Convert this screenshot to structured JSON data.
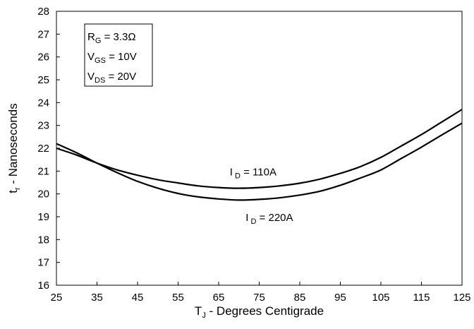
{
  "chart_data": {
    "type": "line",
    "xlabel": {
      "main": "T",
      "sub": "J",
      "rest": " - Degrees Centigrade"
    },
    "ylabel": {
      "main": "t",
      "sub": "r",
      "rest": " - Nanoseconds"
    },
    "xlim": [
      25,
      125
    ],
    "ylim": [
      16,
      28
    ],
    "xticks": [
      "25",
      "35",
      "45",
      "55",
      "65",
      "75",
      "85",
      "95",
      "105",
      "115",
      "125"
    ],
    "yticks": [
      "16",
      "17",
      "18",
      "19",
      "20",
      "21",
      "22",
      "23",
      "24",
      "25",
      "26",
      "27",
      "28"
    ],
    "grid": false,
    "conditions": [
      {
        "main": "R",
        "sub": "G",
        "rest": " = 3.3Ω"
      },
      {
        "main": "V",
        "sub": "GS",
        "rest": " = 10V"
      },
      {
        "main": "V",
        "sub": "DS",
        "rest": " = 20V"
      }
    ],
    "series": [
      {
        "name": {
          "main": "I",
          "sub": " D",
          "rest": " = 110A"
        },
        "x": [
          25,
          30,
          35,
          40,
          45,
          50,
          55,
          60,
          65,
          70,
          75,
          80,
          85,
          90,
          95,
          100,
          105,
          110,
          115,
          120,
          125
        ],
        "y": [
          22.0,
          21.7,
          21.35,
          21.05,
          20.82,
          20.62,
          20.48,
          20.35,
          20.28,
          20.25,
          20.28,
          20.35,
          20.47,
          20.65,
          20.9,
          21.2,
          21.6,
          22.1,
          22.6,
          23.15,
          23.7
        ]
      },
      {
        "name": {
          "main": "I",
          "sub": " D",
          "rest": " = 220A"
        },
        "x": [
          25,
          30,
          35,
          40,
          45,
          50,
          55,
          60,
          65,
          70,
          75,
          80,
          85,
          90,
          95,
          100,
          105,
          110,
          115,
          120,
          125
        ],
        "y": [
          22.2,
          21.8,
          21.35,
          20.93,
          20.55,
          20.25,
          20.02,
          19.87,
          19.78,
          19.73,
          19.76,
          19.83,
          19.95,
          20.12,
          20.38,
          20.7,
          21.05,
          21.55,
          22.05,
          22.58,
          23.1
        ]
      }
    ]
  }
}
